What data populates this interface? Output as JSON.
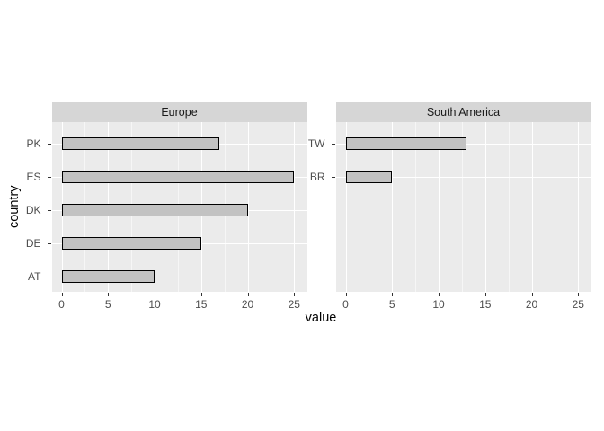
{
  "chart_data": {
    "type": "bar",
    "orientation": "horizontal",
    "title": "",
    "xlabel": "value",
    "ylabel": "country",
    "x_ticks": [
      0,
      5,
      10,
      15,
      20,
      25
    ],
    "x_minor_ticks": [
      2.5,
      7.5,
      12.5,
      17.5,
      22.5
    ],
    "xlim": [
      -1.06,
      26.4
    ],
    "grid": true,
    "legend": false,
    "facets": [
      {
        "label": "Europe",
        "categories": [
          "PK",
          "ES",
          "DK",
          "DE",
          "AT"
        ],
        "values": [
          17,
          25,
          20,
          15,
          10
        ]
      },
      {
        "label": "South America",
        "categories": [
          "TW",
          "BR"
        ],
        "values": [
          13,
          5
        ]
      }
    ],
    "colors": {
      "panel_bg": "#EBEBEB",
      "strip_bg": "#D6D6D6",
      "strip_text": "#1A1A1A",
      "bar_fill": "#C2C2C2",
      "bar_stroke": "#000000",
      "grid_major": "#FFFFFF",
      "grid_minor": "#FFFFFF",
      "grid_minor_opacity": 0.55,
      "tick_label": "#4D4D4D",
      "tick_mark": "#333333",
      "axis_title": "#000000"
    }
  }
}
